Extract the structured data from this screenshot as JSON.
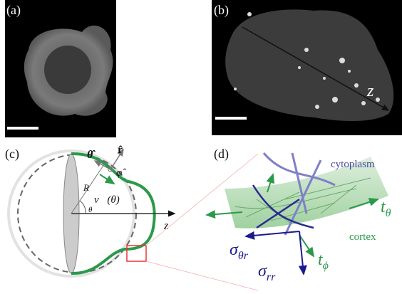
{
  "panels": [
    {
      "label": "(a)"
    },
    {
      "label": "(b)",
      "axis_label": "z"
    },
    {
      "label": "(c)",
      "theta_hat": "θ̂",
      "r_hat": "r̂",
      "phi_hat": "φ̂",
      "radius": "R",
      "velocity": "v⃗(θ)",
      "angle": "θ",
      "axis_label": "z"
    },
    {
      "label": "(d)",
      "cytoplasm": "cytoplasm",
      "cortex": "cortex",
      "t_theta": {
        "base": "t",
        "sub": "θ"
      },
      "t_phi": {
        "base": "t",
        "sub": "ϕ"
      },
      "sigma_theta_r": {
        "base": "σ",
        "sub": "θr"
      },
      "sigma_rr": {
        "base": "σ",
        "sub": "rr"
      }
    }
  ]
}
